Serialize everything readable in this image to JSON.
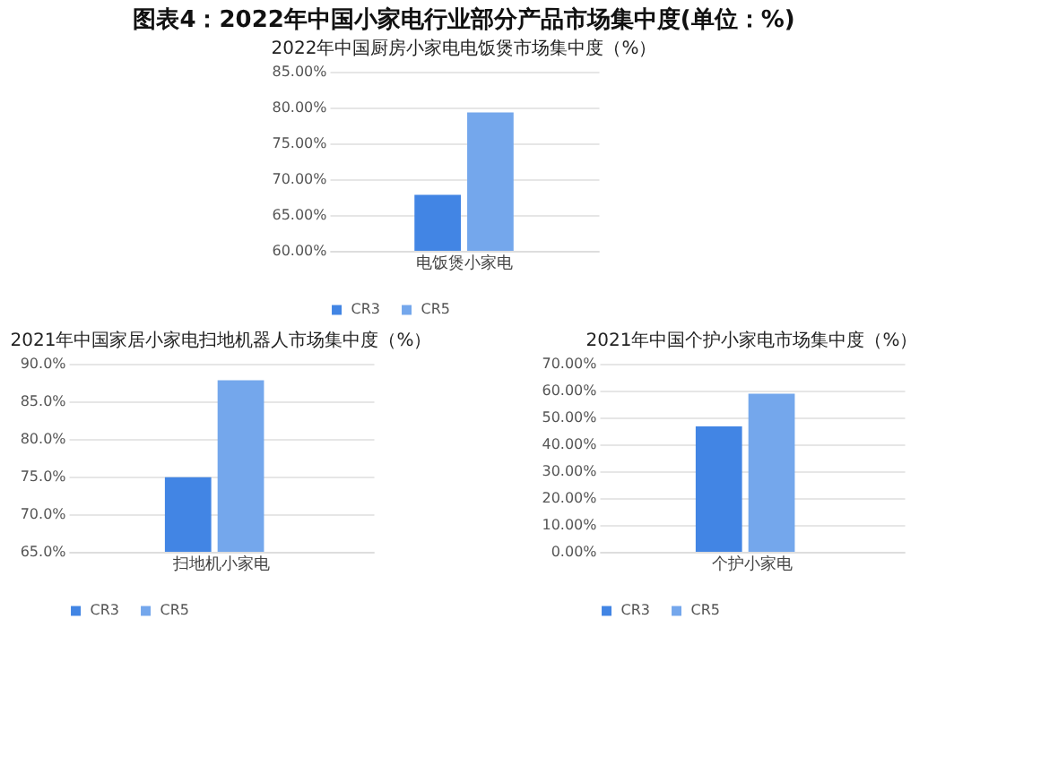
{
  "chart_data": [
    {
      "type": "bar",
      "title": "图表4：2022年中国小家电行业部分产品市场集中度(单位：%)",
      "subtitle": "2022年中国厨房小家电电饭煲市场集中度（%）",
      "categories": [
        "电饭煲小家电"
      ],
      "series": [
        {
          "name": "CR3",
          "color": "#4285e4",
          "values": [
            67.8
          ]
        },
        {
          "name": "CR5",
          "color": "#74a7ec",
          "values": [
            79.3
          ]
        }
      ],
      "ylim": [
        60,
        85
      ],
      "yticks": [
        {
          "value": 60,
          "label": "60.00%"
        },
        {
          "value": 65,
          "label": "65.00%"
        },
        {
          "value": 70,
          "label": "70.00%"
        },
        {
          "value": 75,
          "label": "75.00%"
        },
        {
          "value": 80,
          "label": "80.00%"
        },
        {
          "value": 85,
          "label": "85.00%"
        }
      ],
      "grid": "y",
      "legend": "bottom"
    },
    {
      "type": "bar",
      "title": "2021年中国家居小家电扫地机器人市场集中度（%）",
      "categories": [
        "扫地机小家电"
      ],
      "series": [
        {
          "name": "CR3",
          "color": "#4285e4",
          "values": [
            74.9
          ]
        },
        {
          "name": "CR5",
          "color": "#74a7ec",
          "values": [
            87.8
          ]
        }
      ],
      "ylim": [
        65,
        90
      ],
      "yticks": [
        {
          "value": 65,
          "label": "65.0%"
        },
        {
          "value": 70,
          "label": "70.0%"
        },
        {
          "value": 75,
          "label": "75.0%"
        },
        {
          "value": 80,
          "label": "80.0%"
        },
        {
          "value": 85,
          "label": "85.0%"
        },
        {
          "value": 90,
          "label": "90.0%"
        }
      ],
      "grid": "y",
      "legend": "bottom"
    },
    {
      "type": "bar",
      "title": "2021年中国个护小家电市场集中度（%）",
      "categories": [
        "个护小家电"
      ],
      "series": [
        {
          "name": "CR3",
          "color": "#4285e4",
          "values": [
            46.7
          ]
        },
        {
          "name": "CR5",
          "color": "#74a7ec",
          "values": [
            58.8
          ]
        }
      ],
      "ylim": [
        0,
        70
      ],
      "yticks": [
        {
          "value": 0,
          "label": "0.00%"
        },
        {
          "value": 10,
          "label": "10.00%"
        },
        {
          "value": 20,
          "label": "20.00%"
        },
        {
          "value": 30,
          "label": "30.00%"
        },
        {
          "value": 40,
          "label": "40.00%"
        },
        {
          "value": 50,
          "label": "50.00%"
        },
        {
          "value": 60,
          "label": "60.00%"
        },
        {
          "value": 70,
          "label": "70.00%"
        }
      ],
      "grid": "y",
      "legend": "bottom"
    }
  ]
}
